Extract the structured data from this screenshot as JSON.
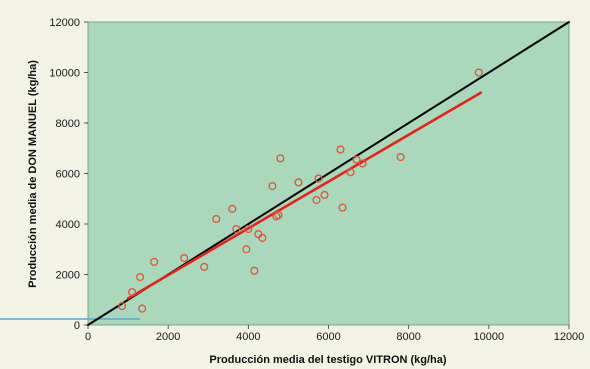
{
  "colors": {
    "page_background": "#f2f3e4",
    "plot_background": "#a9d8bc",
    "identity_line": "#000000",
    "trend_line": "#e8221b",
    "points": "#e8503a",
    "accent_line": "#5aa7c9"
  },
  "chart_data": {
    "type": "scatter",
    "title": "",
    "xlabel": "Producción media del testigo VITRON (kg/ha)",
    "ylabel": "Producción media de DON MANUEL (kg/ha)",
    "xlim": [
      0,
      12000
    ],
    "ylim": [
      0,
      12000
    ],
    "x_ticks": [
      "0",
      "2000",
      "4000",
      "6000",
      "8000",
      "10000",
      "12000"
    ],
    "y_ticks": [
      "0",
      "2000",
      "4000",
      "6000",
      "8000",
      "10000",
      "12000"
    ],
    "grid": false,
    "legend": "none",
    "series": [
      {
        "type": "scatter",
        "points": [
          [
            850,
            750
          ],
          [
            1100,
            1300
          ],
          [
            1300,
            1900
          ],
          [
            1350,
            650
          ],
          [
            1650,
            2500
          ],
          [
            2400,
            2650
          ],
          [
            2900,
            2300
          ],
          [
            3200,
            4200
          ],
          [
            3600,
            4600
          ],
          [
            3700,
            3800
          ],
          [
            3950,
            3000
          ],
          [
            4000,
            3800
          ],
          [
            4150,
            2150
          ],
          [
            4250,
            3600
          ],
          [
            4350,
            3450
          ],
          [
            4600,
            5500
          ],
          [
            4700,
            4300
          ],
          [
            4750,
            4350
          ],
          [
            4800,
            6600
          ],
          [
            5250,
            5650
          ],
          [
            5700,
            4950
          ],
          [
            5750,
            5800
          ],
          [
            5900,
            5150
          ],
          [
            6300,
            6950
          ],
          [
            6350,
            4650
          ],
          [
            6550,
            6050
          ],
          [
            6700,
            6550
          ],
          [
            6850,
            6400
          ],
          [
            7800,
            6650
          ],
          [
            9750,
            10000
          ]
        ]
      },
      {
        "type": "line",
        "role": "reference",
        "x": [
          0,
          12000
        ],
        "y": [
          0,
          12000
        ]
      },
      {
        "type": "line",
        "role": "trend",
        "x": [
          1000,
          9800
        ],
        "y": [
          1050,
          9200
        ]
      }
    ]
  }
}
